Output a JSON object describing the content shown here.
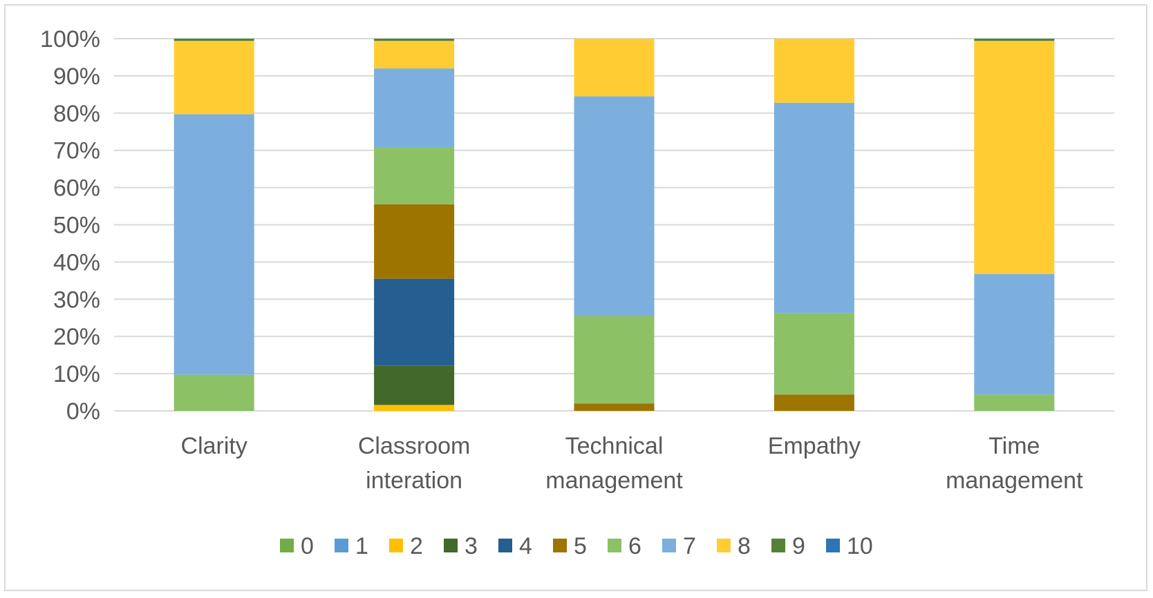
{
  "chart_data": {
    "type": "bar",
    "stacked": true,
    "percent_stacked": true,
    "categories": [
      [
        "Clarity"
      ],
      [
        "Classroom",
        "interation"
      ],
      [
        "Technical",
        "management"
      ],
      [
        "Empathy"
      ],
      [
        "Time",
        "management"
      ]
    ],
    "ylim": [
      0,
      100
    ],
    "y_ticks": [
      "0%",
      "10%",
      "20%",
      "30%",
      "40%",
      "50%",
      "60%",
      "70%",
      "80%",
      "90%",
      "100%"
    ],
    "grid": true,
    "legend_position": "bottom",
    "series": [
      {
        "name": "0",
        "color": "#70ad47",
        "values": [
          0,
          0,
          0,
          0,
          0
        ]
      },
      {
        "name": "1",
        "color": "#5b9bd5",
        "values": [
          0,
          0,
          0,
          0,
          0
        ]
      },
      {
        "name": "2",
        "color": "#ffc000",
        "values": [
          0,
          1.6,
          0,
          0,
          0
        ]
      },
      {
        "name": "3",
        "color": "#43682b",
        "values": [
          0,
          10.6,
          0,
          0,
          0
        ]
      },
      {
        "name": "4",
        "color": "#255e91",
        "values": [
          0,
          23.3,
          0,
          0,
          0
        ]
      },
      {
        "name": "5",
        "color": "#9e7400",
        "values": [
          0,
          20,
          2,
          4.4,
          0
        ]
      },
      {
        "name": "6",
        "color": "#8dc165",
        "values": [
          9.7,
          15.2,
          23.5,
          21.8,
          4.4
        ]
      },
      {
        "name": "7",
        "color": "#7cafdd",
        "values": [
          70,
          21.3,
          59,
          56.6,
          32.4
        ]
      },
      {
        "name": "8",
        "color": "#ffcd33",
        "values": [
          19.7,
          7.4,
          15.5,
          17.2,
          62.6
        ]
      },
      {
        "name": "9",
        "color": "#548235",
        "values": [
          0.6,
          0.6,
          0,
          0,
          0.6
        ]
      },
      {
        "name": "10",
        "color": "#2e75b6",
        "values": [
          0,
          0,
          0,
          0,
          0
        ]
      }
    ]
  }
}
